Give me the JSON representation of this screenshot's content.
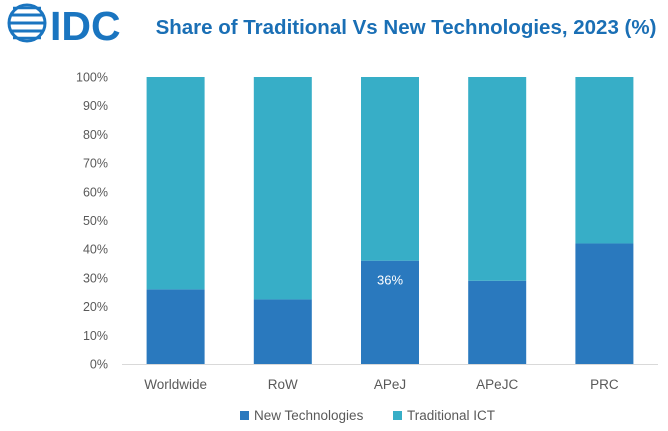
{
  "logo": {
    "text": "IDC"
  },
  "colors": {
    "new": "#2a79be",
    "traditional": "#37aec7",
    "title": "#1a6fb5",
    "logo": "#1a75c0",
    "axis": "#d9d9d9"
  },
  "chart_data": {
    "type": "bar",
    "stacked": true,
    "title": "Share of Traditional Vs New Technologies, 2023 (%)",
    "categories": [
      "Worldwide",
      "RoW",
      "APeJ",
      "APeJC",
      "PRC"
    ],
    "series": [
      {
        "name": "New Technologies",
        "values": [
          26,
          22.5,
          36,
          29,
          42
        ]
      },
      {
        "name": "Traditional ICT",
        "values": [
          74,
          77.5,
          64,
          71,
          58
        ]
      }
    ],
    "ylim": [
      0,
      100
    ],
    "yticks": [
      "0%",
      "10%",
      "20%",
      "30%",
      "40%",
      "50%",
      "60%",
      "70%",
      "80%",
      "90%",
      "100%"
    ],
    "data_labels": [
      {
        "category": "APeJ",
        "series": "New Technologies",
        "text": "36%"
      }
    ],
    "legend": "bottom",
    "grid": false
  }
}
